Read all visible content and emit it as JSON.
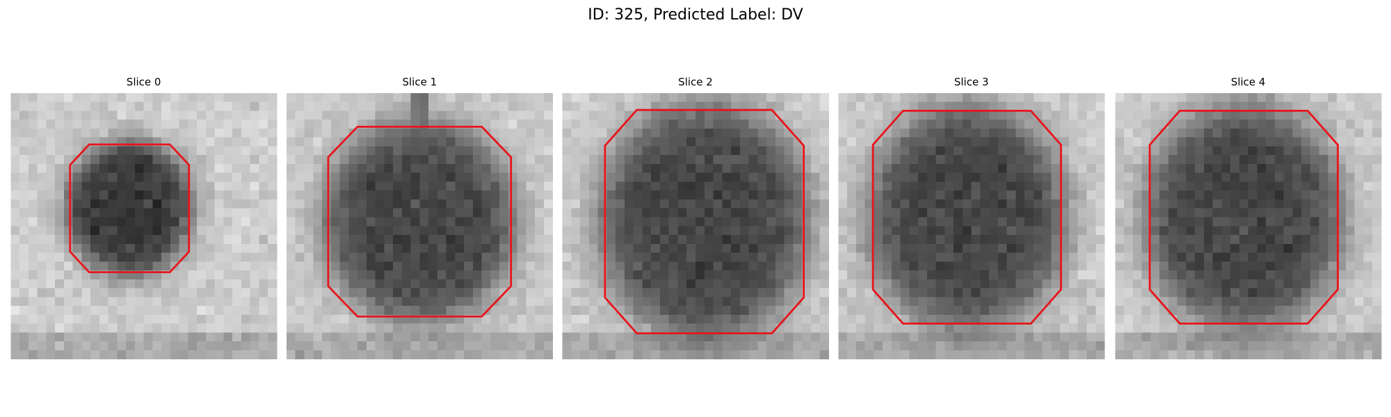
{
  "title": "ID: 325, Predicted Label: DV",
  "panels": [
    {
      "title": "Slice 0"
    },
    {
      "title": "Slice 1"
    },
    {
      "title": "Slice 2"
    },
    {
      "title": "Slice 3"
    },
    {
      "title": "Slice 4"
    }
  ]
}
